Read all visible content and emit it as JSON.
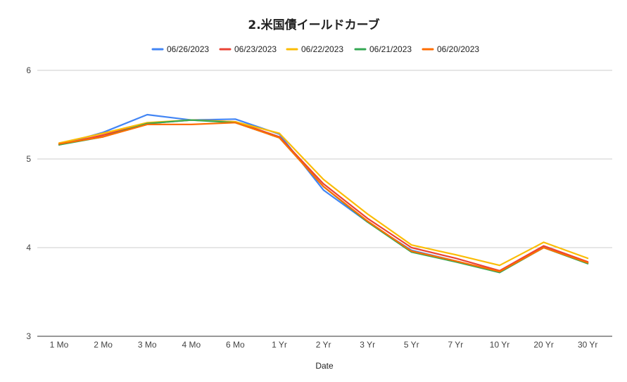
{
  "chart_data": {
    "type": "line",
    "title": "2.米国債イールドカーブ",
    "xlabel": "Date",
    "ylabel": "",
    "ylim": [
      3,
      6
    ],
    "yticks": [
      "3",
      "4",
      "5",
      "6"
    ],
    "grid": true,
    "legend_position": "top",
    "categories": [
      "1 Mo",
      "2 Mo",
      "3 Mo",
      "4 Mo",
      "6 Mo",
      "1 Yr",
      "2 Yr",
      "3 Yr",
      "5 Yr",
      "7 Yr",
      "10 Yr",
      "20 Yr",
      "30 Yr"
    ],
    "series": [
      {
        "name": "06/26/2023",
        "color": "#4285f4",
        "values": [
          5.16,
          5.3,
          5.5,
          5.44,
          5.45,
          5.28,
          4.65,
          4.29,
          3.97,
          3.85,
          3.72,
          4.01,
          3.83
        ]
      },
      {
        "name": "06/23/2023",
        "color": "#ea4335",
        "values": [
          5.16,
          5.27,
          5.4,
          5.44,
          5.42,
          5.25,
          4.72,
          4.33,
          4.0,
          3.88,
          3.74,
          4.02,
          3.84
        ]
      },
      {
        "name": "06/22/2023",
        "color": "#fbbc04",
        "values": [
          5.18,
          5.29,
          5.41,
          5.44,
          5.42,
          5.29,
          4.77,
          4.38,
          4.03,
          3.92,
          3.8,
          4.06,
          3.88
        ]
      },
      {
        "name": "06/21/2023",
        "color": "#34a853",
        "values": [
          5.16,
          5.25,
          5.4,
          5.44,
          5.41,
          5.24,
          4.69,
          4.29,
          3.95,
          3.84,
          3.72,
          4.0,
          3.82
        ]
      },
      {
        "name": "06/20/2023",
        "color": "#ff6d01",
        "values": [
          5.17,
          5.25,
          5.39,
          5.39,
          5.41,
          5.24,
          4.69,
          4.3,
          3.96,
          3.85,
          3.73,
          4.0,
          3.83
        ]
      }
    ]
  }
}
